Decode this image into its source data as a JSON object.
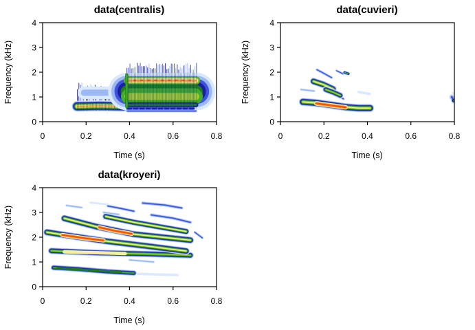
{
  "figure": {
    "background": "#ffffff",
    "text_color": "#000000",
    "description": "Three spectrogram panels of frog call data rendered in an R-style 2x2 grid (bottom-right empty)"
  },
  "palette": {
    "comment": "spectrogram amplitude colors, cold(outer) to hot(core)",
    "colors": [
      "#d9e9ff",
      "#9db9f5",
      "#4053de",
      "#1c1f9e",
      "#1e7c1f",
      "#41ad2a",
      "#9ecb2f",
      "#f4f0a0",
      "#ffa03a",
      "#f84c08"
    ]
  },
  "chart_data": [
    {
      "type": "heatmap",
      "subtype": "spectrogram",
      "title": "data(centralis)",
      "xlabel": "Time (s)",
      "ylabel": "Frequency (kHz)",
      "xlim": [
        0,
        0.8
      ],
      "ylim": [
        0,
        4
      ],
      "xtick_values": [
        0,
        0.2,
        0.4,
        0.6,
        0.8
      ],
      "xtick_labels": [
        "0",
        "0.2",
        "0.4",
        "0.6",
        "0.8"
      ],
      "ytick_values": [
        0,
        1,
        2,
        3,
        4
      ],
      "ytick_labels": [
        "0",
        "1",
        "2",
        "3",
        "4"
      ],
      "grid": false,
      "legend": false,
      "elements": [
        {
          "type": "comb",
          "t": [
            0.16,
            0.372
          ],
          "fBase": 0.8,
          "fMax": 1.58,
          "minH": 0.12,
          "spacing": 0.0068
        },
        {
          "type": "streak",
          "pts": [
            [
              0.19,
              1.17
            ],
            [
              0.33,
              1.17
            ]
          ],
          "w": 0.5,
          "level": 1,
          "start": 0
        },
        {
          "type": "streak",
          "pts": [
            [
              0.158,
              0.62
            ],
            [
              0.265,
              0.64
            ],
            [
              0.372,
              0.62
            ]
          ],
          "w": 0.44,
          "level": 8,
          "start": 0
        },
        {
          "type": "vlines",
          "t": [
            0.16,
            0.372
          ],
          "f": [
            0.44,
            0.8
          ],
          "spacing": 0.0068
        },
        {
          "type": "streak",
          "pts": [
            [
              0.388,
              1.22
            ],
            [
              0.708,
              1.22
            ]
          ],
          "w": 1.52,
          "level": 5,
          "start": 0
        },
        {
          "type": "streak",
          "pts": [
            [
              0.392,
              1.02
            ],
            [
              0.705,
              1.02
            ]
          ],
          "w": 0.56,
          "level": 6,
          "start": 5
        },
        {
          "type": "streak",
          "pts": [
            [
              0.392,
              1.66
            ],
            [
              0.705,
              1.66
            ]
          ],
          "w": 0.34,
          "level": 8,
          "start": 5
        },
        {
          "type": "streak",
          "pts": [
            [
              0.42,
              1.67
            ],
            [
              0.68,
              1.67
            ]
          ],
          "w": 0.09,
          "level": 9,
          "start": 8,
          "dash": [
            3,
            7
          ]
        },
        {
          "type": "streak",
          "pts": [
            [
              0.392,
              0.68
            ],
            [
              0.705,
              0.68
            ]
          ],
          "w": 0.2,
          "level": 4,
          "start": 3
        },
        {
          "type": "streak",
          "pts": [
            [
              0.392,
              0.53
            ],
            [
              0.705,
              0.53
            ]
          ],
          "w": 0.13,
          "level": 3,
          "start": 2,
          "dash": [
            5,
            4
          ]
        },
        {
          "type": "streak",
          "pts": [
            [
              0.39,
              0.43
            ],
            [
              0.705,
              0.43
            ]
          ],
          "w": 0.1,
          "level": 2,
          "start": 1
        },
        {
          "type": "vlines",
          "t": [
            0.388,
            0.708
          ],
          "f": [
            0.5,
            1.97
          ],
          "spacing": 0.0068
        },
        {
          "type": "comb",
          "t": [
            0.388,
            0.708
          ],
          "fBase": 2.0,
          "fMax": 2.38,
          "minH": 0.1,
          "spacing": 0.0068
        },
        {
          "type": "streak",
          "pts": [
            [
              0.387,
              0.6
            ],
            [
              0.387,
              1.9
            ]
          ],
          "w": 0.12,
          "level": 5,
          "start": 4
        }
      ]
    },
    {
      "type": "heatmap",
      "subtype": "spectrogram",
      "title": "data(cuvieri)",
      "xlabel": "Time (s)",
      "ylabel": "Frequency (kHz)",
      "xlim": [
        0,
        0.8
      ],
      "ylim": [
        0,
        4
      ],
      "xtick_values": [
        0,
        0.2,
        0.4,
        0.6,
        0.8
      ],
      "xtick_labels": [
        "0",
        "0.2",
        "0.4",
        "0.6",
        "0.8"
      ],
      "ytick_values": [
        0,
        1,
        2,
        3,
        4
      ],
      "ytick_labels": [
        "0",
        "1",
        "2",
        "3",
        "4"
      ],
      "grid": false,
      "legend": false,
      "elements": [
        {
          "type": "streak",
          "pts": [
            [
              0.095,
              1.3
            ],
            [
              0.155,
              1.24
            ]
          ],
          "w": 0.1,
          "level": 1,
          "start": 0
        },
        {
          "type": "streak",
          "pts": [
            [
              0.168,
              2.1
            ],
            [
              0.2,
              1.95
            ],
            [
              0.235,
              1.78
            ]
          ],
          "w": 0.12,
          "level": 2,
          "start": 0
        },
        {
          "type": "streak",
          "pts": [
            [
              0.258,
              2.06
            ],
            [
              0.288,
              1.93
            ]
          ],
          "w": 0.1,
          "level": 2,
          "start": 0
        },
        {
          "type": "streak",
          "pts": [
            [
              0.295,
              1.99
            ],
            [
              0.312,
              1.94
            ]
          ],
          "w": 0.15,
          "level": 5,
          "start": 0
        },
        {
          "type": "streak",
          "pts": [
            [
              0.262,
              1.06
            ],
            [
              0.29,
              0.92
            ]
          ],
          "w": 0.12,
          "level": 2,
          "start": 0
        },
        {
          "type": "streak",
          "pts": [
            [
              0.36,
              1.2
            ],
            [
              0.41,
              1.12
            ]
          ],
          "w": 0.1,
          "level": 0,
          "start": 0
        },
        {
          "type": "streak",
          "pts": [
            [
              0.152,
              1.63
            ],
            [
              0.197,
              1.5
            ],
            [
              0.242,
              1.32
            ]
          ],
          "w": 0.3,
          "level": 7,
          "start": 0
        },
        {
          "type": "streak",
          "pts": [
            [
              0.208,
              1.3
            ],
            [
              0.245,
              1.18
            ],
            [
              0.275,
              1.06
            ]
          ],
          "w": 0.26,
          "level": 6,
          "start": 0
        },
        {
          "type": "streak",
          "pts": [
            [
              0.103,
              0.8
            ],
            [
              0.16,
              0.76
            ],
            [
              0.23,
              0.68
            ],
            [
              0.3,
              0.59
            ],
            [
              0.36,
              0.55
            ],
            [
              0.412,
              0.55
            ]
          ],
          "w": 0.34,
          "level": 7,
          "start": 0
        },
        {
          "type": "streak",
          "pts": [
            [
              0.165,
              0.74
            ],
            [
              0.23,
              0.66
            ],
            [
              0.3,
              0.58
            ]
          ],
          "w": 0.18,
          "level": 9,
          "start": 7
        },
        {
          "type": "streak",
          "pts": [
            [
              0.788,
              1.0
            ],
            [
              0.8,
              0.82
            ]
          ],
          "w": 0.22,
          "level": 2,
          "start": 0
        },
        {
          "type": "streak",
          "pts": [
            [
              0.795,
              0.85
            ],
            [
              0.806,
              0.83
            ]
          ],
          "w": 0.12,
          "level": 4,
          "start": 3
        },
        {
          "type": "streak",
          "pts": [
            [
              0.792,
              1.17
            ],
            [
              0.8,
              1.13
            ]
          ],
          "w": 0.08,
          "level": 0,
          "start": 0
        }
      ]
    },
    {
      "type": "heatmap",
      "subtype": "spectrogram",
      "title": "data(kroyeri)",
      "xlabel": "Time (s)",
      "ylabel": "Frequency (kHz)",
      "xlim": [
        0,
        0.8
      ],
      "ylim": [
        0,
        4
      ],
      "xtick_values": [
        0,
        0.2,
        0.4,
        0.6,
        0.8
      ],
      "xtick_labels": [
        "0",
        "0.2",
        "0.4",
        "0.6",
        "0.8"
      ],
      "ytick_values": [
        0,
        1,
        2,
        3,
        4
      ],
      "ytick_labels": [
        "0",
        "1",
        "2",
        "3",
        "4"
      ],
      "grid": false,
      "legend": false,
      "elements": [
        {
          "type": "streak",
          "pts": [
            [
              0.11,
              3.28
            ],
            [
              0.18,
              3.2
            ]
          ],
          "w": 0.1,
          "level": 1,
          "start": 0
        },
        {
          "type": "streak",
          "pts": [
            [
              0.22,
              3.4
            ],
            [
              0.3,
              3.32
            ]
          ],
          "w": 0.08,
          "level": 0,
          "start": 0
        },
        {
          "type": "streak",
          "pts": [
            [
              0.3,
              3.26
            ],
            [
              0.36,
              3.16
            ],
            [
              0.42,
              3.05
            ]
          ],
          "w": 0.13,
          "level": 2,
          "start": 0
        },
        {
          "type": "streak",
          "pts": [
            [
              0.28,
              3.0
            ],
            [
              0.35,
              2.92
            ]
          ],
          "w": 0.1,
          "level": 1,
          "start": 0
        },
        {
          "type": "streak",
          "pts": [
            [
              0.46,
              3.38
            ],
            [
              0.56,
              3.3
            ],
            [
              0.64,
              3.18
            ]
          ],
          "w": 0.14,
          "level": 2,
          "start": 0
        },
        {
          "type": "streak",
          "pts": [
            [
              0.5,
              2.9
            ],
            [
              0.6,
              2.77
            ],
            [
              0.68,
              2.6
            ]
          ],
          "w": 0.14,
          "level": 2,
          "start": 0
        },
        {
          "type": "streak",
          "pts": [
            [
              0.7,
              2.2
            ],
            [
              0.735,
              1.97
            ]
          ],
          "w": 0.11,
          "level": 2,
          "start": 0
        },
        {
          "type": "streak",
          "pts": [
            [
              0.4,
              1.08
            ],
            [
              0.51,
              1.0
            ]
          ],
          "w": 0.1,
          "level": 1,
          "start": 0
        },
        {
          "type": "streak",
          "pts": [
            [
              0.44,
              0.52
            ],
            [
              0.62,
              0.47
            ]
          ],
          "w": 0.1,
          "level": 0,
          "start": 0
        },
        {
          "type": "streak",
          "pts": [
            [
              0.05,
              0.77
            ],
            [
              0.16,
              0.71
            ],
            [
              0.3,
              0.61
            ],
            [
              0.42,
              0.55
            ]
          ],
          "w": 0.24,
          "level": 5,
          "start": 0
        },
        {
          "type": "streak",
          "pts": [
            [
              0.07,
              0.745
            ],
            [
              0.36,
              0.585
            ]
          ],
          "w": 0.09,
          "level": 4,
          "start": 4
        },
        {
          "type": "streak",
          "pts": [
            [
              0.04,
              1.45
            ],
            [
              0.25,
              1.37
            ],
            [
              0.5,
              1.32
            ],
            [
              0.68,
              1.27
            ]
          ],
          "w": 0.28,
          "level": 6,
          "start": 0
        },
        {
          "type": "streak",
          "pts": [
            [
              0.1,
              1.41
            ],
            [
              0.38,
              1.34
            ]
          ],
          "w": 0.14,
          "level": 7,
          "start": 7
        },
        {
          "type": "streak",
          "pts": [
            [
              0.02,
              2.2
            ],
            [
              0.12,
              2.06
            ],
            [
              0.3,
              1.83
            ],
            [
              0.5,
              1.62
            ],
            [
              0.66,
              1.44
            ]
          ],
          "w": 0.3,
          "level": 7,
          "start": 0
        },
        {
          "type": "streak",
          "pts": [
            [
              0.09,
              2.09
            ],
            [
              0.2,
              1.95
            ],
            [
              0.28,
              1.87
            ]
          ],
          "w": 0.17,
          "level": 9,
          "start": 7
        },
        {
          "type": "streak",
          "pts": [
            [
              0.1,
              2.76
            ],
            [
              0.25,
              2.42
            ],
            [
              0.42,
              2.12
            ],
            [
              0.55,
              2.0
            ],
            [
              0.68,
              1.88
            ]
          ],
          "w": 0.3,
          "level": 7,
          "start": 0
        },
        {
          "type": "streak",
          "pts": [
            [
              0.26,
              2.4
            ],
            [
              0.33,
              2.26
            ],
            [
              0.41,
              2.14
            ]
          ],
          "w": 0.17,
          "level": 9,
          "start": 7
        },
        {
          "type": "streak",
          "pts": [
            [
              0.29,
              2.84
            ],
            [
              0.42,
              2.6
            ],
            [
              0.55,
              2.4
            ],
            [
              0.66,
              2.23
            ]
          ],
          "w": 0.27,
          "level": 7,
          "start": 0
        }
      ]
    }
  ]
}
